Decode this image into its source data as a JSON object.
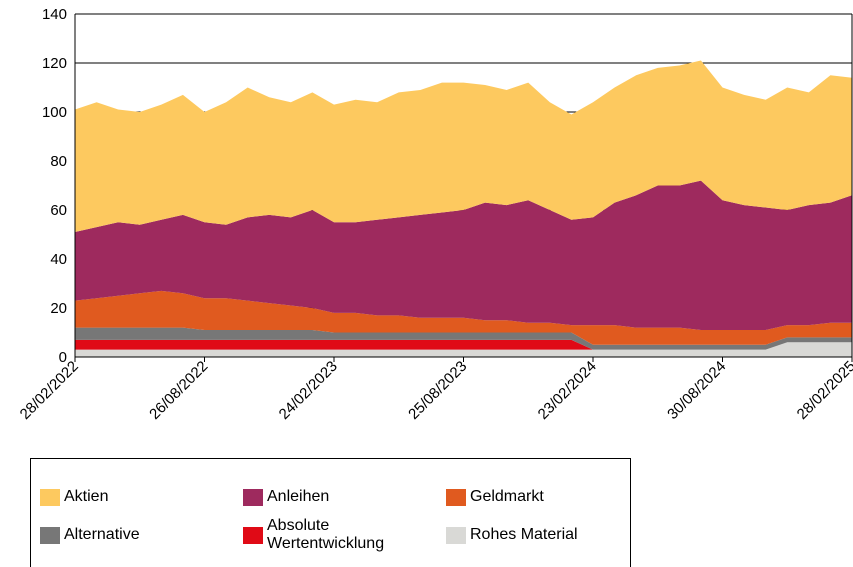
{
  "chart_data": {
    "type": "stacked_area",
    "categories": [
      "28/02/2022",
      null,
      null,
      null,
      null,
      null,
      "26/08/2022",
      null,
      null,
      null,
      null,
      null,
      "24/02/2023",
      null,
      null,
      null,
      null,
      null,
      "25/08/2023",
      null,
      null,
      null,
      null,
      null,
      "23/02/2024",
      null,
      null,
      null,
      null,
      null,
      "30/08/2024",
      null,
      null,
      null,
      null,
      null,
      "28/02/2025"
    ],
    "series": [
      {
        "name": "Aktien",
        "color": "#fdc95f",
        "values": [
          50,
          51,
          46,
          46,
          47,
          49,
          45,
          50,
          53,
          48,
          47,
          48,
          48,
          50,
          48,
          51,
          51,
          53,
          52,
          48,
          47,
          48,
          44,
          43,
          47,
          47,
          49,
          48,
          49,
          49,
          46,
          45,
          44,
          50,
          46,
          52,
          48
        ]
      },
      {
        "name": "Anleihen",
        "color": "#9e2a5e",
        "values": [
          28,
          29,
          30,
          28,
          29,
          32,
          31,
          30,
          34,
          36,
          36,
          40,
          37,
          37,
          39,
          40,
          42,
          43,
          44,
          48,
          47,
          50,
          46,
          43,
          44,
          50,
          54,
          58,
          58,
          61,
          53,
          51,
          50,
          47,
          49,
          49,
          52
        ]
      },
      {
        "name": "Geldmarkt",
        "color": "#e05a1f",
        "values": [
          11,
          12,
          13,
          14,
          15,
          14,
          13,
          13,
          12,
          11,
          10,
          9,
          8,
          8,
          7,
          7,
          6,
          6,
          6,
          5,
          5,
          4,
          4,
          3,
          8,
          8,
          7,
          7,
          7,
          6,
          6,
          6,
          6,
          5,
          5,
          6,
          6
        ]
      },
      {
        "name": "Alternative",
        "color": "#777777",
        "values": [
          5,
          5,
          5,
          5,
          5,
          5,
          4,
          4,
          4,
          4,
          4,
          4,
          3,
          3,
          3,
          3,
          3,
          3,
          3,
          3,
          3,
          3,
          3,
          3,
          2,
          2,
          2,
          2,
          2,
          2,
          2,
          2,
          2,
          2,
          2,
          2,
          2
        ]
      },
      {
        "name": "Absolute Wertentwicklung",
        "color": "#e00a16",
        "values": [
          4,
          4,
          4,
          4,
          4,
          4,
          4,
          4,
          4,
          4,
          4,
          4,
          4,
          4,
          4,
          4,
          4,
          4,
          4,
          4,
          4,
          4,
          4,
          4,
          0,
          0,
          0,
          0,
          0,
          0,
          0,
          0,
          0,
          0,
          0,
          0,
          0
        ]
      },
      {
        "name": "Rohes Material",
        "color": "#d9d9d6",
        "values": [
          3,
          3,
          3,
          3,
          3,
          3,
          3,
          3,
          3,
          3,
          3,
          3,
          3,
          3,
          3,
          3,
          3,
          3,
          3,
          3,
          3,
          3,
          3,
          3,
          3,
          3,
          3,
          3,
          3,
          3,
          3,
          3,
          3,
          6,
          6,
          6,
          6
        ]
      }
    ],
    "ylim": [
      0,
      140
    ],
    "yticks": [
      0,
      20,
      40,
      60,
      80,
      100,
      120,
      140
    ],
    "grid": true
  }
}
